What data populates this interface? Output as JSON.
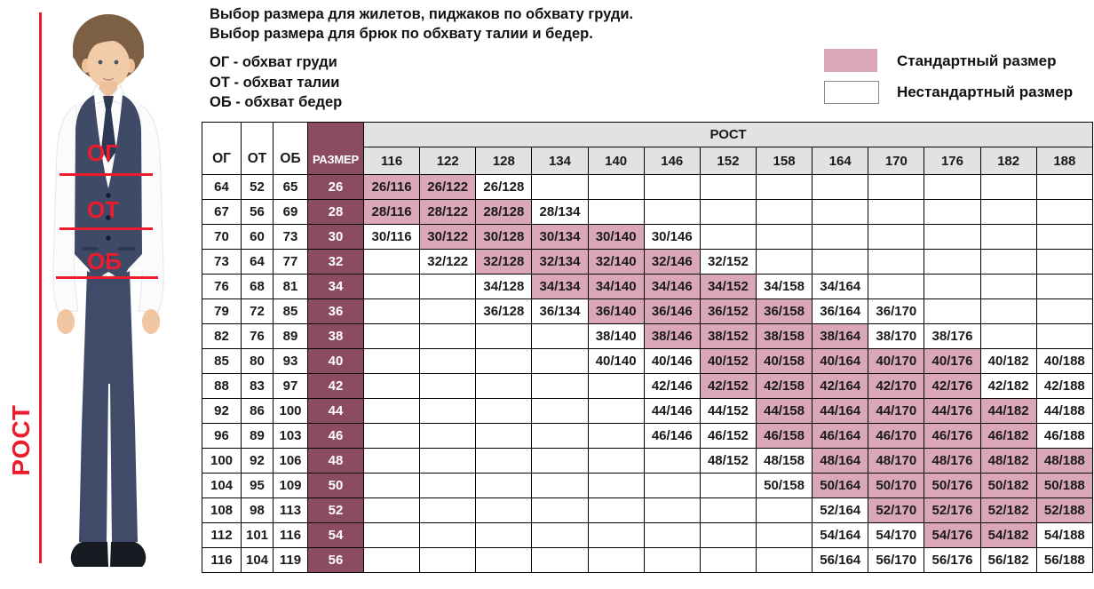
{
  "header": {
    "title_line1": "Выбор размера для жилетов, пиджаков по обхвату груди.",
    "title_line2": "Выбор размера для брюк по обхвату талии и бедер.",
    "abbr1": "ОГ - обхват груди",
    "abbr2": "ОТ - обхват талии",
    "abbr3": "ОБ - обхват бедер"
  },
  "legend": {
    "standard_label": "Стандартный размер",
    "nonstandard_label": "Нестандартный размер"
  },
  "figure": {
    "chest_label": "ОГ",
    "waist_label": "ОТ",
    "hips_label": "ОБ",
    "height_label": "РОСТ"
  },
  "colors": {
    "standard_pink": "#d9a7b6",
    "size_column_maroon": "#8b4c60",
    "header_gray": "#e2e2e2",
    "annotation_red": "#ea1c2e"
  },
  "chart_data": {
    "type": "table",
    "corner_headers": [
      "ОГ",
      "ОТ",
      "ОБ",
      "РАЗМЕР"
    ],
    "rost_label": "РОСТ",
    "heights": [
      "116",
      "122",
      "128",
      "134",
      "140",
      "146",
      "152",
      "158",
      "164",
      "170",
      "176",
      "182",
      "188"
    ],
    "rows": [
      {
        "og": "64",
        "ot": "52",
        "ob": "65",
        "size": "26",
        "cells": [
          {
            "h": "116",
            "t": "26/116",
            "std": true
          },
          {
            "h": "122",
            "t": "26/122",
            "std": true
          },
          {
            "h": "128",
            "t": "26/128",
            "std": false
          }
        ]
      },
      {
        "og": "67",
        "ot": "56",
        "ob": "69",
        "size": "28",
        "cells": [
          {
            "h": "116",
            "t": "28/116",
            "std": true
          },
          {
            "h": "122",
            "t": "28/122",
            "std": true
          },
          {
            "h": "128",
            "t": "28/128",
            "std": true
          },
          {
            "h": "134",
            "t": "28/134",
            "std": false
          }
        ]
      },
      {
        "og": "70",
        "ot": "60",
        "ob": "73",
        "size": "30",
        "cells": [
          {
            "h": "116",
            "t": "30/116",
            "std": false
          },
          {
            "h": "122",
            "t": "30/122",
            "std": true
          },
          {
            "h": "128",
            "t": "30/128",
            "std": true
          },
          {
            "h": "134",
            "t": "30/134",
            "std": true
          },
          {
            "h": "140",
            "t": "30/140",
            "std": true
          },
          {
            "h": "146",
            "t": "30/146",
            "std": false
          }
        ]
      },
      {
        "og": "73",
        "ot": "64",
        "ob": "77",
        "size": "32",
        "cells": [
          {
            "h": "122",
            "t": "32/122",
            "std": false
          },
          {
            "h": "128",
            "t": "32/128",
            "std": true
          },
          {
            "h": "134",
            "t": "32/134",
            "std": true
          },
          {
            "h": "140",
            "t": "32/140",
            "std": true
          },
          {
            "h": "146",
            "t": "32/146",
            "std": true
          },
          {
            "h": "152",
            "t": "32/152",
            "std": false
          }
        ]
      },
      {
        "og": "76",
        "ot": "68",
        "ob": "81",
        "size": "34",
        "cells": [
          {
            "h": "128",
            "t": "34/128",
            "std": false
          },
          {
            "h": "134",
            "t": "34/134",
            "std": true
          },
          {
            "h": "140",
            "t": "34/140",
            "std": true
          },
          {
            "h": "146",
            "t": "34/146",
            "std": true
          },
          {
            "h": "152",
            "t": "34/152",
            "std": true
          },
          {
            "h": "158",
            "t": "34/158",
            "std": false
          },
          {
            "h": "164",
            "t": "34/164",
            "std": false
          }
        ]
      },
      {
        "og": "79",
        "ot": "72",
        "ob": "85",
        "size": "36",
        "cells": [
          {
            "h": "128",
            "t": "36/128",
            "std": false
          },
          {
            "h": "134",
            "t": "36/134",
            "std": false
          },
          {
            "h": "140",
            "t": "36/140",
            "std": true
          },
          {
            "h": "146",
            "t": "36/146",
            "std": true
          },
          {
            "h": "152",
            "t": "36/152",
            "std": true
          },
          {
            "h": "158",
            "t": "36/158",
            "std": true
          },
          {
            "h": "164",
            "t": "36/164",
            "std": false
          },
          {
            "h": "170",
            "t": "36/170",
            "std": false
          }
        ]
      },
      {
        "og": "82",
        "ot": "76",
        "ob": "89",
        "size": "38",
        "cells": [
          {
            "h": "140",
            "t": "38/140",
            "std": false
          },
          {
            "h": "146",
            "t": "38/146",
            "std": true
          },
          {
            "h": "152",
            "t": "38/152",
            "std": true
          },
          {
            "h": "158",
            "t": "38/158",
            "std": true
          },
          {
            "h": "164",
            "t": "38/164",
            "std": true
          },
          {
            "h": "170",
            "t": "38/170",
            "std": false
          },
          {
            "h": "176",
            "t": "38/176",
            "std": false
          }
        ]
      },
      {
        "og": "85",
        "ot": "80",
        "ob": "93",
        "size": "40",
        "cells": [
          {
            "h": "140",
            "t": "40/140",
            "std": false
          },
          {
            "h": "146",
            "t": "40/146",
            "std": false
          },
          {
            "h": "152",
            "t": "40/152",
            "std": true
          },
          {
            "h": "158",
            "t": "40/158",
            "std": true
          },
          {
            "h": "164",
            "t": "40/164",
            "std": true
          },
          {
            "h": "170",
            "t": "40/170",
            "std": true
          },
          {
            "h": "176",
            "t": "40/176",
            "std": true
          },
          {
            "h": "182",
            "t": "40/182",
            "std": false
          },
          {
            "h": "188",
            "t": "40/188",
            "std": false
          }
        ]
      },
      {
        "og": "88",
        "ot": "83",
        "ob": "97",
        "size": "42",
        "cells": [
          {
            "h": "146",
            "t": "42/146",
            "std": false
          },
          {
            "h": "152",
            "t": "42/152",
            "std": true
          },
          {
            "h": "158",
            "t": "42/158",
            "std": true
          },
          {
            "h": "164",
            "t": "42/164",
            "std": true
          },
          {
            "h": "170",
            "t": "42/170",
            "std": true
          },
          {
            "h": "176",
            "t": "42/176",
            "std": true
          },
          {
            "h": "182",
            "t": "42/182",
            "std": false
          },
          {
            "h": "188",
            "t": "42/188",
            "std": false
          }
        ]
      },
      {
        "og": "92",
        "ot": "86",
        "ob": "100",
        "size": "44",
        "cells": [
          {
            "h": "146",
            "t": "44/146",
            "std": false
          },
          {
            "h": "152",
            "t": "44/152",
            "std": false
          },
          {
            "h": "158",
            "t": "44/158",
            "std": true
          },
          {
            "h": "164",
            "t": "44/164",
            "std": true
          },
          {
            "h": "170",
            "t": "44/170",
            "std": true
          },
          {
            "h": "176",
            "t": "44/176",
            "std": true
          },
          {
            "h": "182",
            "t": "44/182",
            "std": true
          },
          {
            "h": "188",
            "t": "44/188",
            "std": false
          }
        ]
      },
      {
        "og": "96",
        "ot": "89",
        "ob": "103",
        "size": "46",
        "cells": [
          {
            "h": "146",
            "t": "46/146",
            "std": false
          },
          {
            "h": "152",
            "t": "46/152",
            "std": false
          },
          {
            "h": "158",
            "t": "46/158",
            "std": true
          },
          {
            "h": "164",
            "t": "46/164",
            "std": true
          },
          {
            "h": "170",
            "t": "46/170",
            "std": true
          },
          {
            "h": "176",
            "t": "46/176",
            "std": true
          },
          {
            "h": "182",
            "t": "46/182",
            "std": true
          },
          {
            "h": "188",
            "t": "46/188",
            "std": false
          }
        ]
      },
      {
        "og": "100",
        "ot": "92",
        "ob": "106",
        "size": "48",
        "cells": [
          {
            "h": "152",
            "t": "48/152",
            "std": false
          },
          {
            "h": "158",
            "t": "48/158",
            "std": false
          },
          {
            "h": "164",
            "t": "48/164",
            "std": true
          },
          {
            "h": "170",
            "t": "48/170",
            "std": true
          },
          {
            "h": "176",
            "t": "48/176",
            "std": true
          },
          {
            "h": "182",
            "t": "48/182",
            "std": true
          },
          {
            "h": "188",
            "t": "48/188",
            "std": true
          }
        ]
      },
      {
        "og": "104",
        "ot": "95",
        "ob": "109",
        "size": "50",
        "cells": [
          {
            "h": "158",
            "t": "50/158",
            "std": false
          },
          {
            "h": "164",
            "t": "50/164",
            "std": true
          },
          {
            "h": "170",
            "t": "50/170",
            "std": true
          },
          {
            "h": "176",
            "t": "50/176",
            "std": true
          },
          {
            "h": "182",
            "t": "50/182",
            "std": true
          },
          {
            "h": "188",
            "t": "50/188",
            "std": true
          }
        ]
      },
      {
        "og": "108",
        "ot": "98",
        "ob": "113",
        "size": "52",
        "cells": [
          {
            "h": "164",
            "t": "52/164",
            "std": false
          },
          {
            "h": "170",
            "t": "52/170",
            "std": true
          },
          {
            "h": "176",
            "t": "52/176",
            "std": true
          },
          {
            "h": "182",
            "t": "52/182",
            "std": true
          },
          {
            "h": "188",
            "t": "52/188",
            "std": true
          }
        ]
      },
      {
        "og": "112",
        "ot": "101",
        "ob": "116",
        "size": "54",
        "cells": [
          {
            "h": "164",
            "t": "54/164",
            "std": false
          },
          {
            "h": "170",
            "t": "54/170",
            "std": false
          },
          {
            "h": "176",
            "t": "54/176",
            "std": true
          },
          {
            "h": "182",
            "t": "54/182",
            "std": true
          },
          {
            "h": "188",
            "t": "54/188",
            "std": false
          }
        ]
      },
      {
        "og": "116",
        "ot": "104",
        "ob": "119",
        "size": "56",
        "cells": [
          {
            "h": "164",
            "t": "56/164",
            "std": false
          },
          {
            "h": "170",
            "t": "56/170",
            "std": false
          },
          {
            "h": "176",
            "t": "56/176",
            "std": false
          },
          {
            "h": "182",
            "t": "56/182",
            "std": false
          },
          {
            "h": "188",
            "t": "56/188",
            "std": false
          }
        ]
      }
    ]
  }
}
